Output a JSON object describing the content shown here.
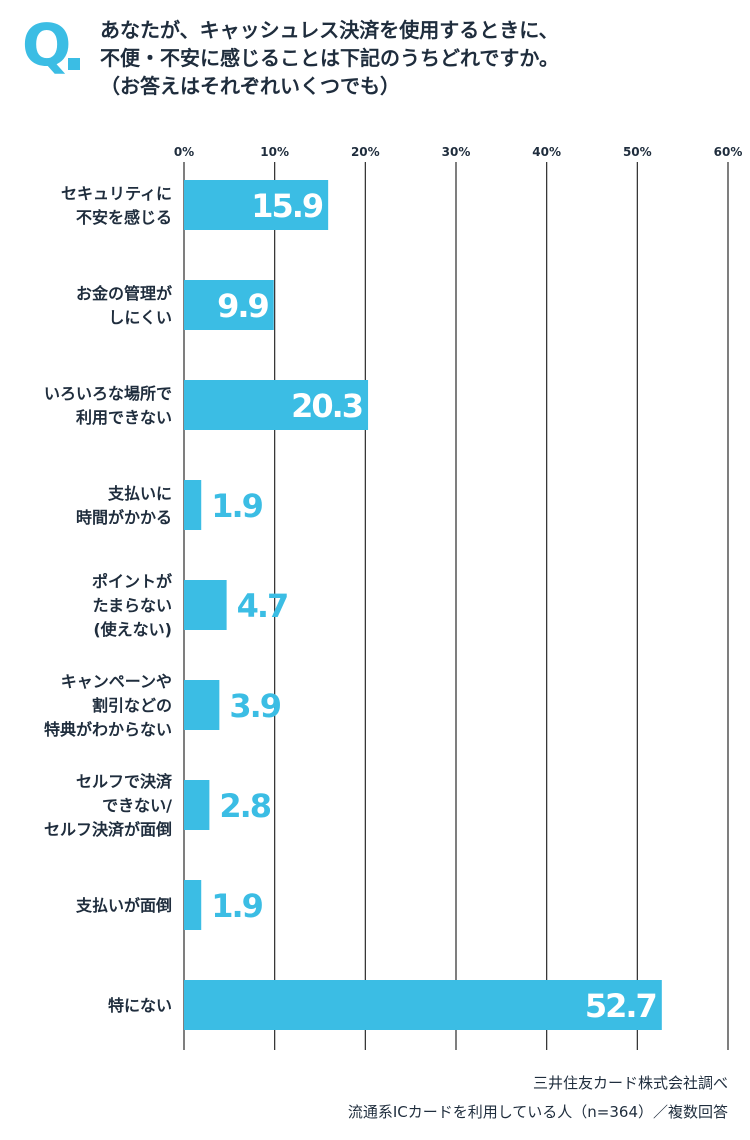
{
  "header": {
    "q_mark": "Q",
    "question_lines": [
      "あなたが、キャッシュレス決済を使用するときに、",
      "不便・不安に感じることは下記のうちどれですか。",
      "（お答えはそれぞれいくつでも）"
    ]
  },
  "chart_data": {
    "type": "bar",
    "orientation": "horizontal",
    "title": "",
    "xlabel": "",
    "ylabel": "",
    "xlim": [
      0,
      60
    ],
    "ticks": [
      "0%",
      "10%",
      "20%",
      "30%",
      "40%",
      "50%",
      "60%"
    ],
    "grid": true,
    "categories": [
      [
        "セキュリティに",
        "不安を感じる"
      ],
      [
        "お金の管理が",
        "しにくい"
      ],
      [
        "いろいろな場所で",
        "利用できない"
      ],
      [
        "支払いに",
        "時間がかかる"
      ],
      [
        "ポイントが",
        "たまらない",
        "(使えない)"
      ],
      [
        "キャンペーンや",
        "割引などの",
        "特典がわからない"
      ],
      [
        "セルフで決済",
        "できない/",
        "セルフ決済が面倒"
      ],
      [
        "支払いが面倒"
      ],
      [
        "特にない"
      ]
    ],
    "values": [
      15.9,
      9.9,
      20.3,
      1.9,
      4.7,
      3.9,
      2.8,
      1.9,
      52.7
    ],
    "value_labels": [
      "15.9",
      "9.9",
      "20.3",
      "1.9",
      "4.7",
      "3.9",
      "2.8",
      "1.9",
      "52.7"
    ],
    "bar_color": "#3bbde4",
    "grid_color": "#2a2a2a",
    "label_color": "#1f2d3d"
  },
  "footer": {
    "source": "三井住友カード株式会社調べ",
    "note": "流通系ICカードを利用している人（n=364）／複数回答"
  }
}
